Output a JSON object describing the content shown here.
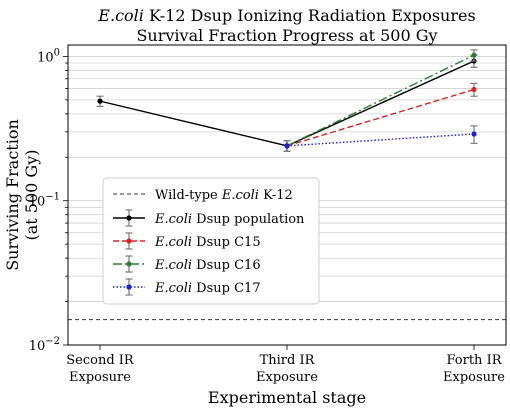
{
  "chart_data": {
    "type": "line",
    "title": "E.coli K-12 Dsup Ionizing Radiation Exposures",
    "subtitle": "Survival Fraction Progress at 500 Gy",
    "xlabel": "Experimental stage",
    "ylabel_line1": "Surviving Fraction",
    "ylabel_line2": "(at 500 Gy)",
    "yscale": "log",
    "ylim": [
      0.01,
      1.2
    ],
    "grid": "horizontal",
    "legend_position": "lower-left",
    "categories": [
      [
        "Second IR",
        "Exposure"
      ],
      [
        "Third IR",
        "Exposure"
      ],
      [
        "Forth IR",
        "Exposure"
      ]
    ],
    "yticks": [
      {
        "base": "10",
        "exp": "−2",
        "value": 0.01
      },
      {
        "base": "10",
        "exp": "−1",
        "value": 0.1
      },
      {
        "base": "10",
        "exp": "0",
        "value": 1
      }
    ],
    "reference_line": {
      "name": "Wild-type E.coli K-12",
      "value": 0.015,
      "color": "#333333",
      "dash": "4,3"
    },
    "series": [
      {
        "name": "E.coli Dsup population",
        "color": "#000000",
        "dash": "",
        "x": [
          0,
          1,
          2
        ],
        "values": [
          0.49,
          0.24,
          0.93
        ],
        "errors": [
          0.04,
          0.02,
          0.09
        ]
      },
      {
        "name": "E.coli Dsup C15",
        "color": "#d62728",
        "dash": "6,3",
        "x": [
          1,
          2
        ],
        "values": [
          0.24,
          0.59
        ],
        "errors": [
          0.02,
          0.06
        ]
      },
      {
        "name": "E.coli Dsup C16",
        "color": "#2e7d32",
        "dash": "9,3,2,3",
        "x": [
          1,
          2
        ],
        "values": [
          0.24,
          1.02
        ],
        "errors": [
          0.02,
          0.09
        ]
      },
      {
        "name": "E.coli Dsup C17",
        "color": "#1f1fd6",
        "dash": "1.5,2",
        "x": [
          1,
          2
        ],
        "values": [
          0.24,
          0.29
        ],
        "errors": [
          0.02,
          0.04
        ]
      }
    ]
  }
}
